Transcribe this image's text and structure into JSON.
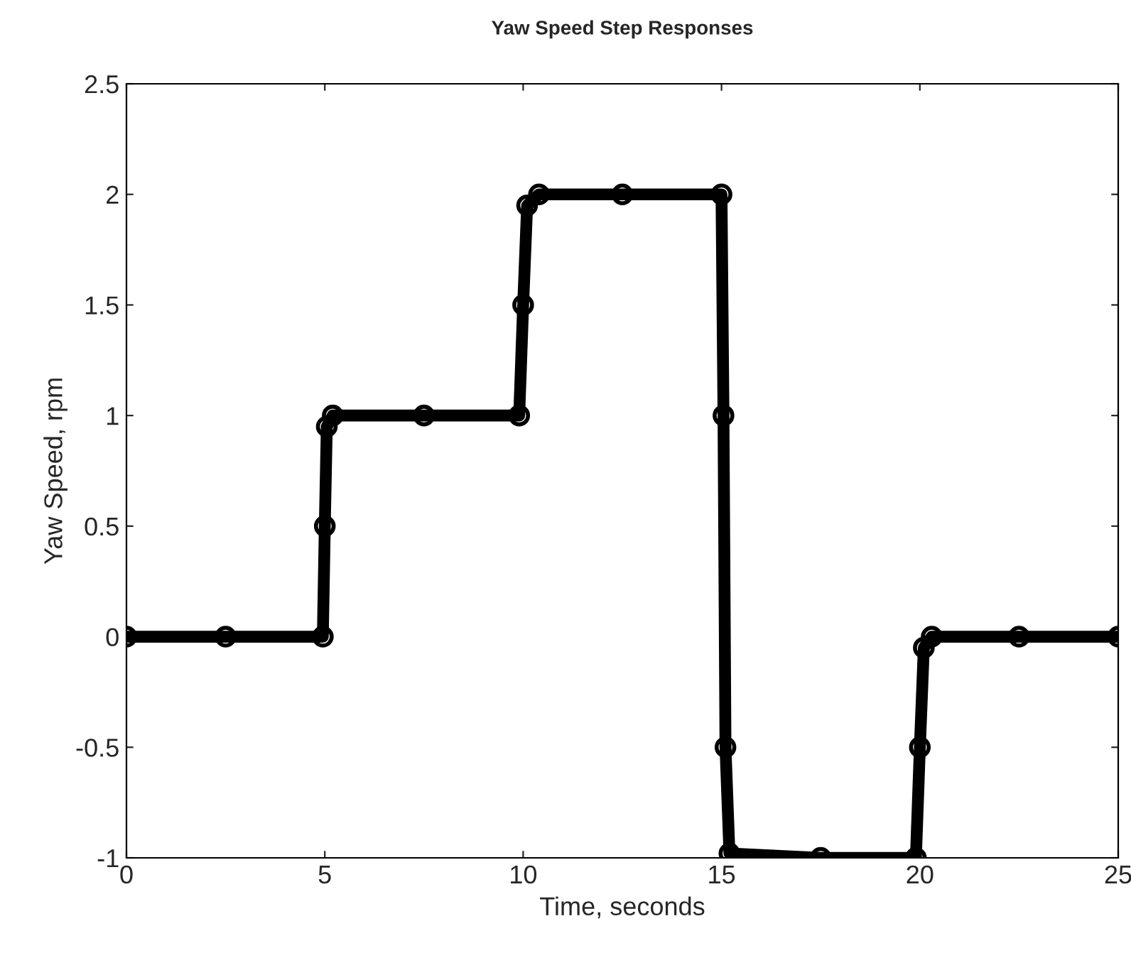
{
  "chart_data": {
    "type": "line",
    "title": "Yaw Speed Step Responses",
    "xlabel": "Time, seconds",
    "ylabel": "Yaw Speed, rpm",
    "x": [
      0,
      2.5,
      4.95,
      5.0,
      5.05,
      5.2,
      7.5,
      9.9,
      10.0,
      10.1,
      10.4,
      12.5,
      15.0,
      15.05,
      15.1,
      15.2,
      17.5,
      19.9,
      20.0,
      20.1,
      20.3,
      22.5,
      25
    ],
    "series": [
      {
        "color": "#000000",
        "values": [
          0,
          0,
          0,
          0.5,
          0.95,
          1.0,
          1.0,
          1.0,
          1.5,
          1.95,
          2.0,
          2.0,
          2.0,
          1.0,
          -0.5,
          -0.98,
          -1.0,
          -1.0,
          -0.5,
          -0.05,
          0,
          0,
          0
        ]
      }
    ],
    "xlim": [
      0,
      25
    ],
    "ylim": [
      -1,
      2.5
    ],
    "xticks": [
      0,
      5,
      10,
      15,
      20,
      25
    ],
    "yticks": [
      -1,
      -0.5,
      0,
      0.5,
      1,
      1.5,
      2,
      2.5
    ],
    "marker": "circle",
    "line_style": "solid",
    "grid": false
  }
}
